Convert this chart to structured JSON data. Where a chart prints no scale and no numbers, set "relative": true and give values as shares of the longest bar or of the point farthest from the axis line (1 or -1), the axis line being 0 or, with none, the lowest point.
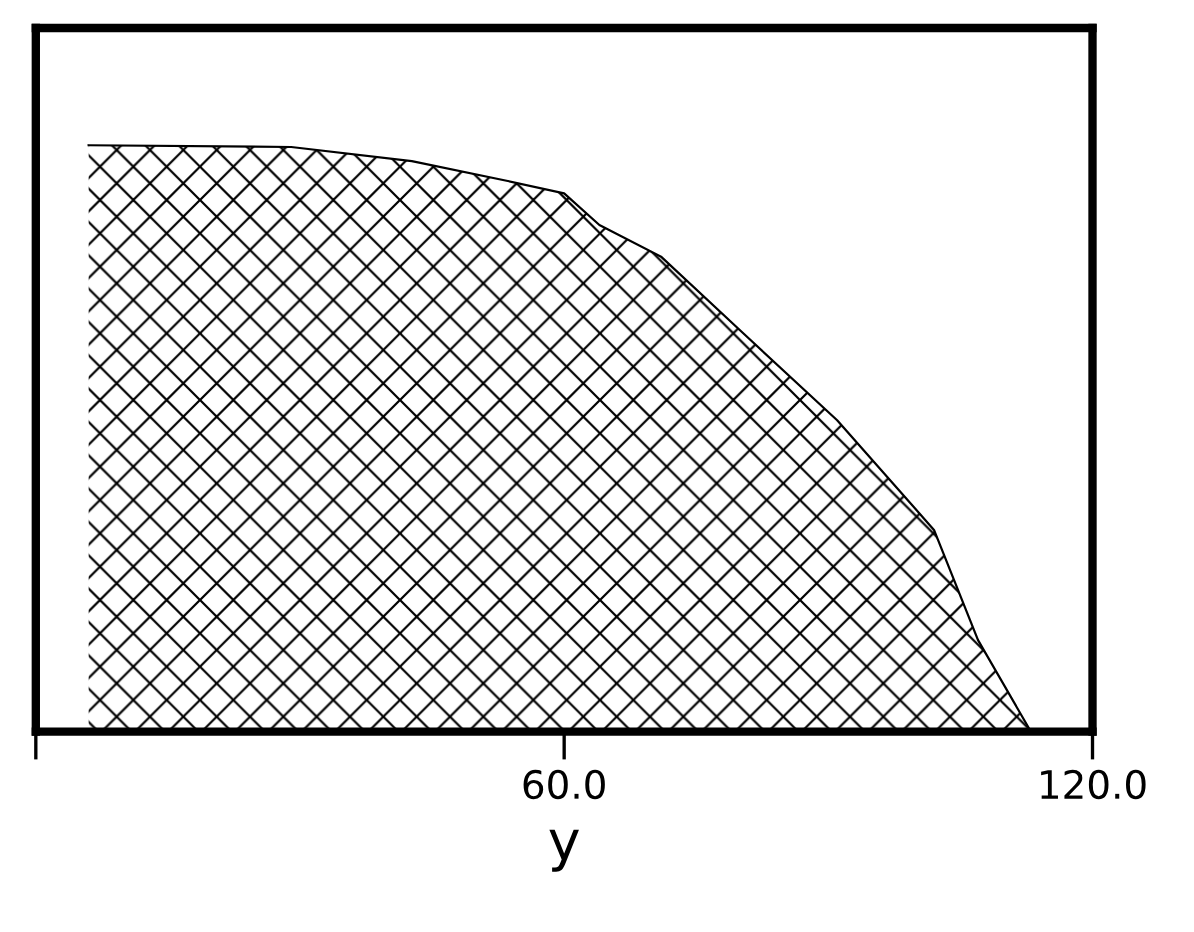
{
  "chart_data": {
    "type": "area",
    "relative": true,
    "xlabel": "y",
    "x": [
      6,
      29,
      42.7,
      53.6,
      60,
      64,
      71,
      80,
      91,
      102,
      107,
      113
    ],
    "series": [
      {
        "color": "#000000",
        "values": [
          1.0,
          0.997,
          0.973,
          0.939,
          0.918,
          0.864,
          0.81,
          0.684,
          0.531,
          0.344,
          0.156,
          0
        ]
      }
    ],
    "xlim": [
      0,
      120
    ],
    "xticks": [
      {
        "value": 0,
        "label": null
      },
      {
        "value": 60,
        "label": "60.0"
      },
      {
        "value": 120,
        "label": "120.0"
      }
    ],
    "grid": false
  }
}
